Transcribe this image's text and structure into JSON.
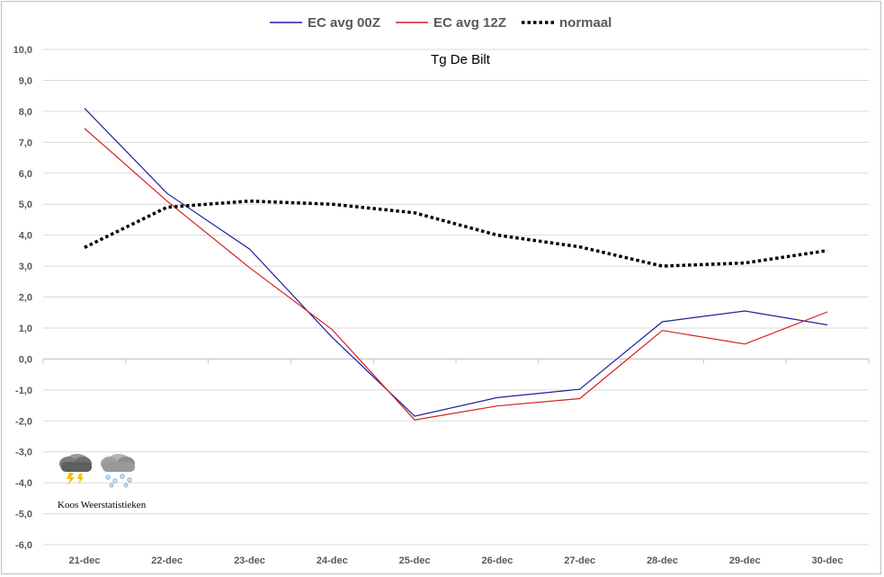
{
  "chart_data": {
    "type": "line",
    "title": "Tg De Bilt",
    "categories": [
      "21-dec",
      "22-dec",
      "23-dec",
      "24-dec",
      "25-dec",
      "26-dec",
      "27-dec",
      "28-dec",
      "29-dec",
      "30-dec"
    ],
    "ylim": [
      -6,
      10
    ],
    "ytick_step": 1,
    "ytick_labels": [
      "10,0",
      "9,0",
      "8,0",
      "7,0",
      "6,0",
      "5,0",
      "4,0",
      "3,0",
      "2,0",
      "1,0",
      "0,0",
      "-1,0",
      "-2,0",
      "-3,0",
      "-4,0",
      "-5,0",
      "-6,0"
    ],
    "grid": true,
    "legend_position": "top",
    "series": [
      {
        "name": "EC avg 00Z",
        "color": "#1f1f9e",
        "style": "solid",
        "values": [
          8.1,
          5.35,
          3.55,
          0.7,
          -1.85,
          -1.25,
          -0.98,
          1.2,
          1.55,
          1.1
        ]
      },
      {
        "name": "EC avg 12Z",
        "color": "#d42020",
        "style": "solid",
        "values": [
          7.45,
          5.1,
          2.95,
          0.95,
          -1.97,
          -1.52,
          -1.28,
          0.92,
          0.48,
          1.52
        ]
      },
      {
        "name": "normaal",
        "color": "#000000",
        "style": "dotted",
        "values": [
          3.6,
          4.9,
          5.1,
          5.0,
          4.72,
          4.0,
          3.62,
          3.0,
          3.1,
          3.5
        ]
      }
    ]
  },
  "watermark": {
    "label": "Koos Weerstatistieken",
    "icons": [
      "thunderstorm-cloud-icon",
      "snow-cloud-icon"
    ]
  }
}
